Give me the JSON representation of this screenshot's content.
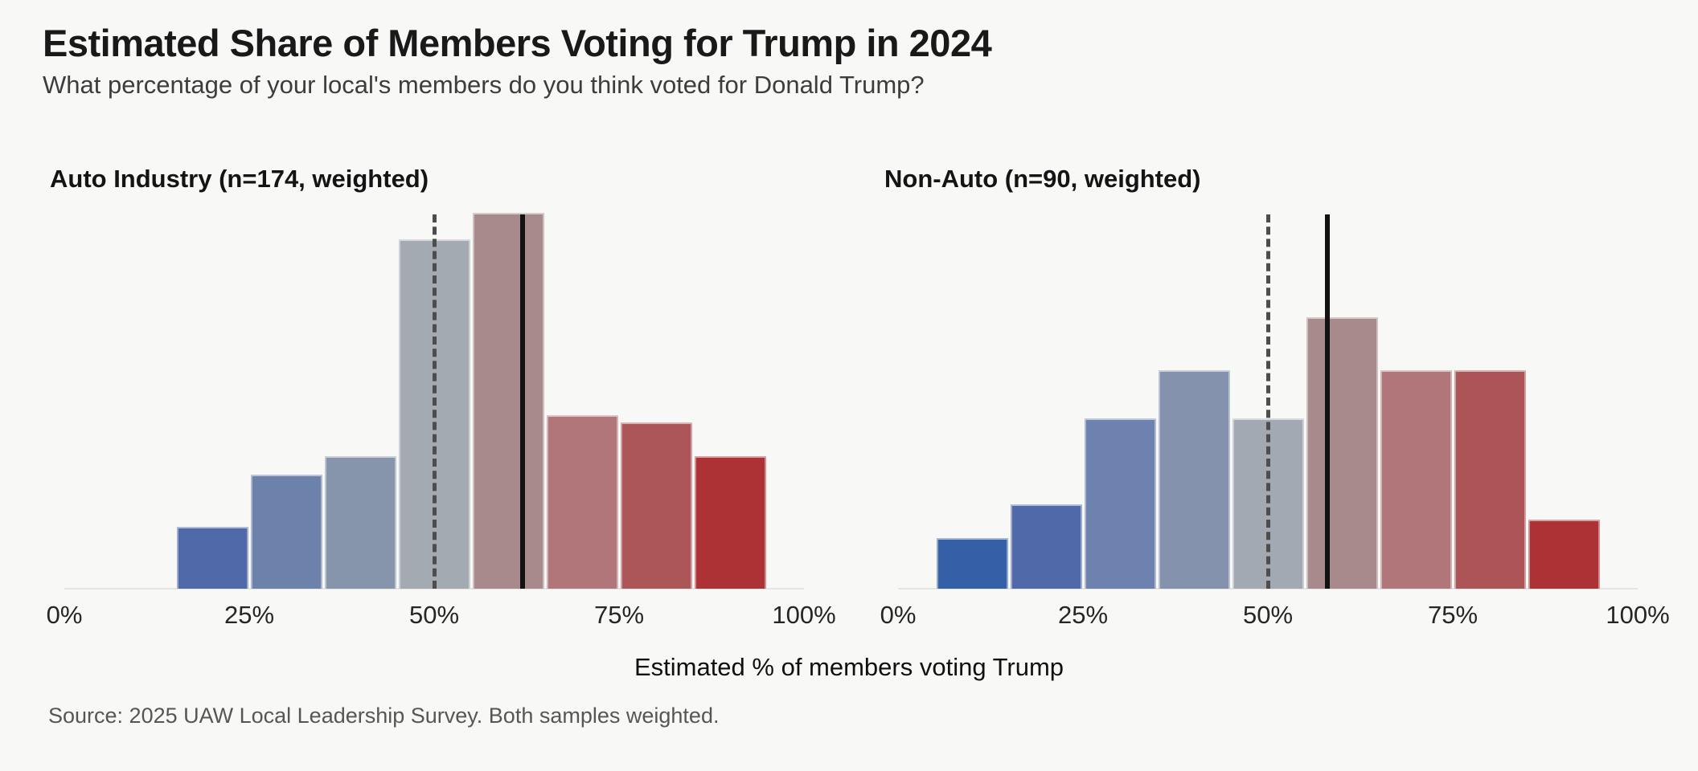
{
  "chart_data": {
    "type": "bar",
    "subtype": "histogram-pair",
    "title": "Estimated Share of Members Voting for Trump in 2024",
    "subtitle": "What percentage of your local's members do you think voted for Donald Trump?",
    "xlabel": "Estimated % of members voting Trump",
    "source_note": "Source: 2025 UAW Local Leadership Survey. Both samples weighted.",
    "y_axis": {
      "visible": false,
      "note": "no y axis shown; bar heights stored as fraction of tallest bar"
    },
    "x_axis": {
      "min": 0,
      "max": 100,
      "ticks": [
        {
          "value": 0,
          "label": "0%"
        },
        {
          "value": 25,
          "label": "25%"
        },
        {
          "value": 50,
          "label": "50%"
        },
        {
          "value": 75,
          "label": "75%"
        },
        {
          "value": 100,
          "label": "100%"
        }
      ]
    },
    "reference_line": {
      "value": 50,
      "style": "dashed",
      "color": "#4d4d4d"
    },
    "panels": [
      {
        "title": "Auto Industry (n=174, weighted)",
        "n": 174,
        "weighted": true,
        "mean_line": {
          "value": 62,
          "style": "solid",
          "color": "#121212"
        },
        "bin_width": 10,
        "bars": [
          {
            "bin_start": 15,
            "bin_end": 25,
            "rel_height": 0.16,
            "color": "#5069a8"
          },
          {
            "bin_start": 25,
            "bin_end": 35,
            "rel_height": 0.3,
            "color": "#6d82ab"
          },
          {
            "bin_start": 35,
            "bin_end": 45,
            "rel_height": 0.35,
            "color": "#8795ac"
          },
          {
            "bin_start": 45,
            "bin_end": 55,
            "rel_height": 0.93,
            "color": "#a3aab2"
          },
          {
            "bin_start": 55,
            "bin_end": 65,
            "rel_height": 1.0,
            "color": "#a98a8c"
          },
          {
            "bin_start": 65,
            "bin_end": 75,
            "rel_height": 0.46,
            "color": "#b0767a"
          },
          {
            "bin_start": 75,
            "bin_end": 85,
            "rel_height": 0.44,
            "color": "#ac5658"
          },
          {
            "bin_start": 85,
            "bin_end": 95,
            "rel_height": 0.35,
            "color": "#ac3236"
          }
        ]
      },
      {
        "title": "Non-Auto (n=90, weighted)",
        "n": 90,
        "weighted": true,
        "mean_line": {
          "value": 58,
          "style": "solid",
          "color": "#121212"
        },
        "bin_width": 10,
        "bars": [
          {
            "bin_start": 5,
            "bin_end": 15,
            "rel_height": 0.13,
            "color": "#3560a8"
          },
          {
            "bin_start": 15,
            "bin_end": 25,
            "rel_height": 0.22,
            "color": "#4f69a9"
          },
          {
            "bin_start": 25,
            "bin_end": 35,
            "rel_height": 0.45,
            "color": "#6d82ae"
          },
          {
            "bin_start": 35,
            "bin_end": 45,
            "rel_height": 0.58,
            "color": "#8492ad"
          },
          {
            "bin_start": 45,
            "bin_end": 55,
            "rel_height": 0.45,
            "color": "#a2a9b2"
          },
          {
            "bin_start": 55,
            "bin_end": 65,
            "rel_height": 0.72,
            "color": "#a98a8c"
          },
          {
            "bin_start": 65,
            "bin_end": 75,
            "rel_height": 0.58,
            "color": "#b0767a"
          },
          {
            "bin_start": 75,
            "bin_end": 85,
            "rel_height": 0.58,
            "color": "#ad5456"
          },
          {
            "bin_start": 85,
            "bin_end": 95,
            "rel_height": 0.18,
            "color": "#ac3236"
          }
        ]
      }
    ]
  }
}
